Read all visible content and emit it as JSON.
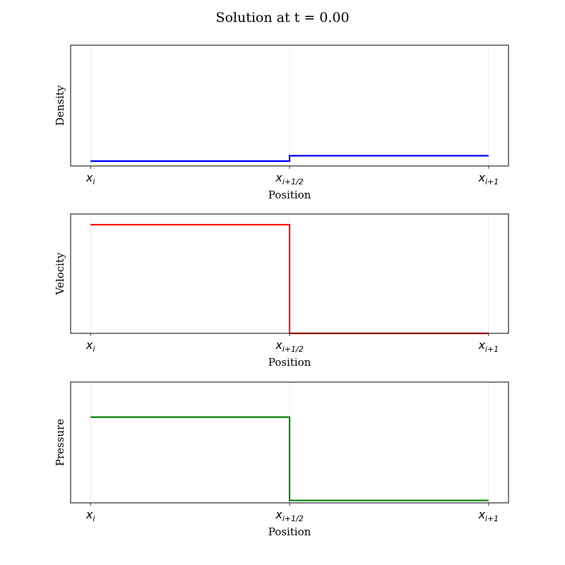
{
  "figure": {
    "title": "Solution at t = 0.00"
  },
  "chart_data": [
    {
      "type": "line",
      "step": true,
      "ylabel": "Density",
      "xlabel": "Position",
      "x_ticks": [
        {
          "x": 0.0,
          "base": "x",
          "sub": "i"
        },
        {
          "x": 0.5,
          "base": "x",
          "sub": "i+1/2"
        },
        {
          "x": 1.0,
          "base": "x",
          "sub": "i+1"
        }
      ],
      "xlim": [
        -0.05,
        1.05
      ],
      "ylim": [
        0,
        1
      ],
      "grid": "x",
      "color": "#0000ff",
      "x": [
        0.0,
        0.5,
        0.5,
        1.0
      ],
      "y": [
        0.04,
        0.04,
        0.085,
        0.085
      ]
    },
    {
      "type": "line",
      "step": true,
      "ylabel": "Velocity",
      "xlabel": "Position",
      "x_ticks": [
        {
          "x": 0.0,
          "base": "x",
          "sub": "i"
        },
        {
          "x": 0.5,
          "base": "x",
          "sub": "i+1/2"
        },
        {
          "x": 1.0,
          "base": "x",
          "sub": "i+1"
        }
      ],
      "xlim": [
        -0.05,
        1.05
      ],
      "ylim": [
        0,
        1
      ],
      "grid": "x",
      "color": "#ff0000",
      "x": [
        0.0,
        0.5,
        0.5,
        1.0
      ],
      "y": [
        0.91,
        0.91,
        0.0,
        0.0
      ]
    },
    {
      "type": "line",
      "step": true,
      "ylabel": "Pressure",
      "xlabel": "Position",
      "x_ticks": [
        {
          "x": 0.0,
          "base": "x",
          "sub": "i"
        },
        {
          "x": 0.5,
          "base": "x",
          "sub": "i+1/2"
        },
        {
          "x": 1.0,
          "base": "x",
          "sub": "i+1"
        }
      ],
      "xlim": [
        -0.05,
        1.05
      ],
      "ylim": [
        0,
        1
      ],
      "grid": "x",
      "color": "#008000",
      "x": [
        0.0,
        0.5,
        0.5,
        1.0
      ],
      "y": [
        0.71,
        0.71,
        0.02,
        0.02
      ]
    }
  ]
}
